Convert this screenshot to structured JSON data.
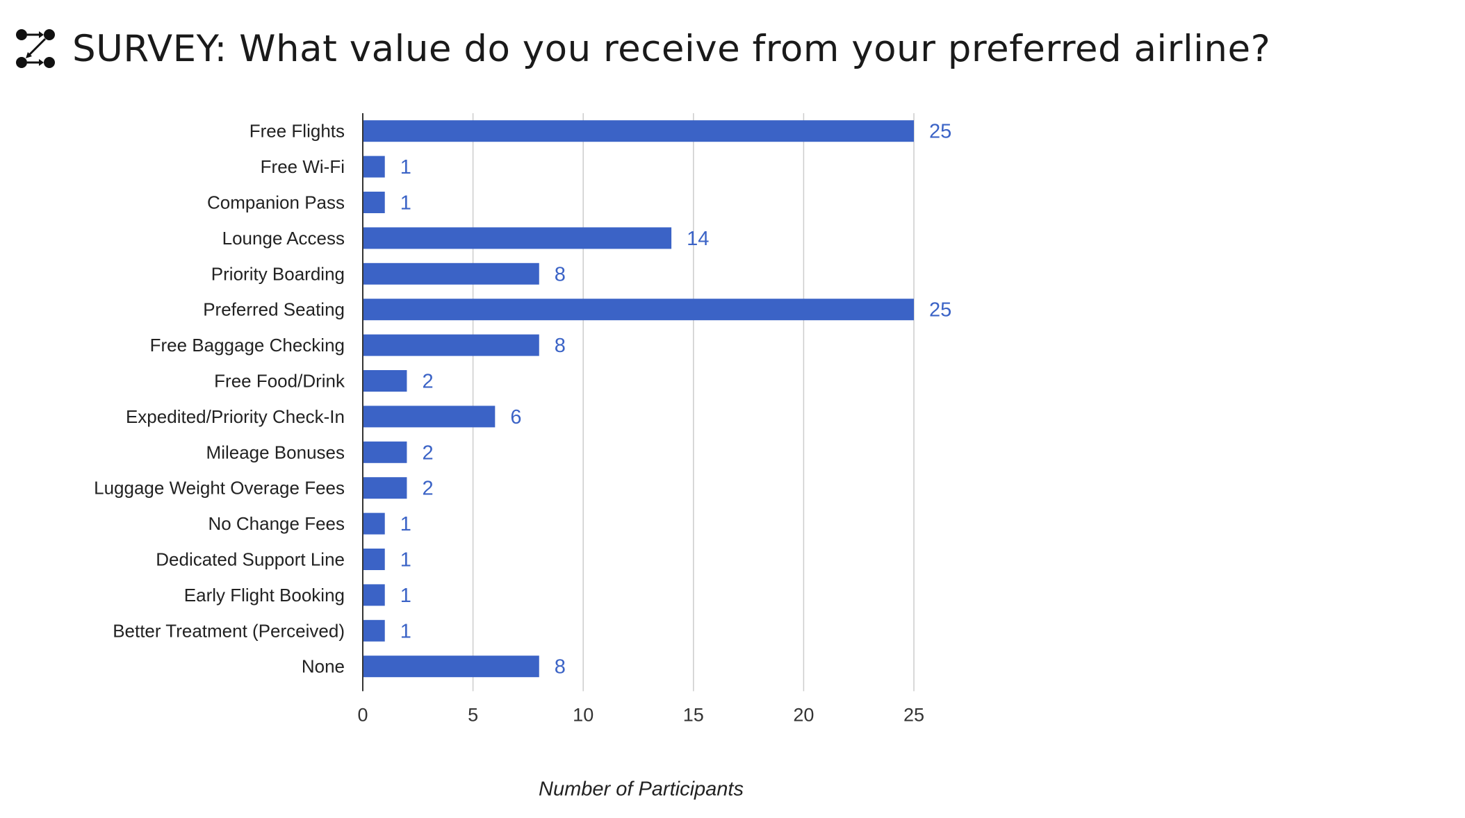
{
  "header": {
    "title": "SURVEY: What value do you receive from your preferred airline?",
    "logo_icon": "nodes-graph-icon"
  },
  "colors": {
    "bar": "#3b63c6",
    "value_label": "#3b63c6",
    "grid": "#cccccc",
    "axis": "#333333"
  },
  "chart_data": {
    "type": "bar",
    "orientation": "horizontal",
    "title": "",
    "xlabel": "Number of Participants",
    "ylabel": "",
    "xlim": [
      0,
      25
    ],
    "xticks": [
      0,
      5,
      10,
      15,
      20,
      25
    ],
    "grid": true,
    "legend": "none",
    "categories": [
      "Free Flights",
      "Free Wi-Fi",
      "Companion Pass",
      "Lounge Access",
      "Priority Boarding",
      "Preferred Seating",
      "Free Baggage Checking",
      "Free Food/Drink",
      "Expedited/Priority Check-In",
      "Mileage Bonuses",
      "Luggage Weight Overage Fees",
      "No Change Fees",
      "Dedicated Support Line",
      "Early Flight Booking",
      "Better Treatment (Perceived)",
      "None"
    ],
    "values": [
      25,
      1,
      1,
      14,
      8,
      25,
      8,
      2,
      6,
      2,
      2,
      1,
      1,
      1,
      1,
      8
    ]
  }
}
